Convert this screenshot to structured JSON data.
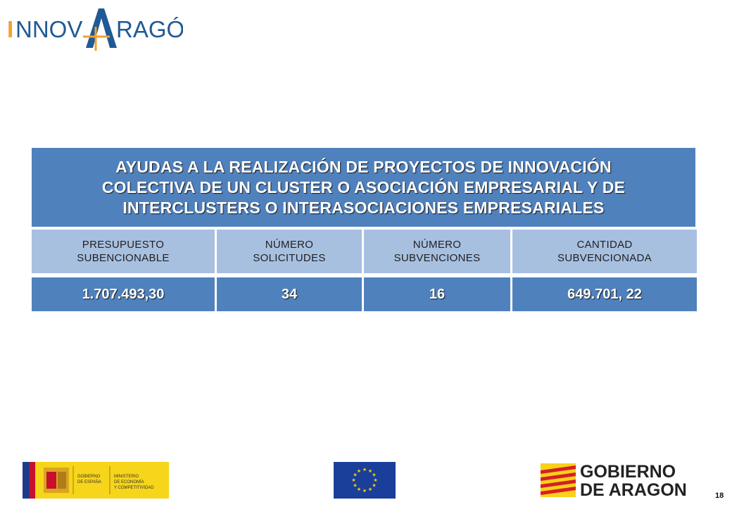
{
  "header": {
    "logo_text": "INNOVARAGÓN"
  },
  "title": {
    "lines": [
      "AYUDAS A LA REALIZACIÓN DE PROYECTOS DE INNOVACIÓN",
      "COLECTIVA DE UN CLUSTER O ASOCIACIÓN EMPRESARIAL Y DE",
      "INTERCLUSTERS O INTERASOCIACIONES EMPRESARIALES"
    ]
  },
  "table": {
    "headers": [
      [
        "PRESUPUESTO",
        "SUBENCIONABLE"
      ],
      [
        "NÚMERO",
        "SOLICITUDES"
      ],
      [
        "NÚMERO",
        "SUBVENCIONES"
      ],
      [
        "CANTIDAD",
        "SUBVENCIONADA"
      ]
    ],
    "values": [
      "1.707.493,30",
      "34",
      "16",
      "649.701, 22"
    ]
  },
  "footer": {
    "ministry_logo_text": [
      "GOBIERNO",
      "DE ESPAÑA",
      "MINISTERIO",
      "DE ECONOMÍA",
      "Y COMPETITIVIDAD"
    ],
    "gobierno_logo_text": [
      "GOBIERNO",
      "DE ARAGON"
    ],
    "page_number": "18"
  },
  "colors": {
    "title_bg": "#4f81bd",
    "header_bg": "#a8c0e0",
    "value_bg": "#4f81bd",
    "logo_blue": "#1f5a96",
    "logo_orange": "#f5a030"
  }
}
